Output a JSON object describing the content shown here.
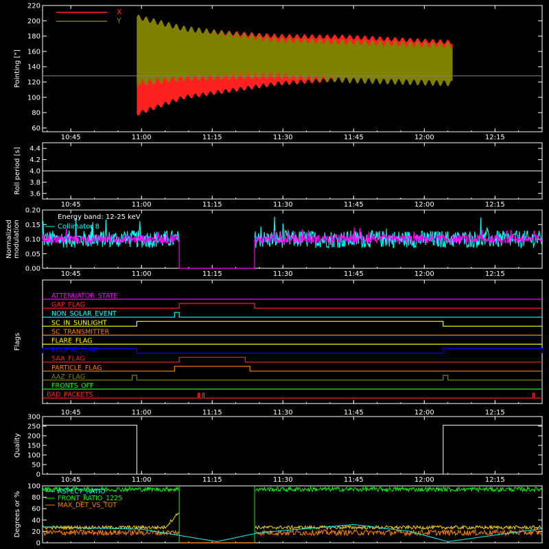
{
  "colors": {
    "background": "#000000",
    "axes": "#ffffff",
    "red": "#ff2020",
    "olive": "#808000",
    "cyan": "#00ffff",
    "magenta": "#ff00ff",
    "orange": "#ff8000",
    "yellow": "#ffff00",
    "blue": "#0000ff",
    "green": "#00ff00",
    "gold": "#ffd700"
  },
  "chart_data": [
    {
      "type": "area",
      "id": "pointing",
      "ylabel": "Pointing [\"]",
      "ylim": [
        55,
        220
      ],
      "yticks": [
        60,
        80,
        100,
        120,
        140,
        160,
        180,
        200,
        220
      ],
      "xticks": [
        "10:45",
        "11:00",
        "11:15",
        "11:30",
        "11:45",
        "12:00",
        "12:15"
      ],
      "legend_position": "top-left",
      "reference_line": 128,
      "series": [
        {
          "name": "X",
          "color": "#ff2020",
          "t_start": "10:59",
          "t_end": "12:06",
          "upper": [
            [
              0,
              205
            ],
            [
              10,
              188
            ],
            [
              30,
              180
            ],
            [
              45,
              179
            ],
            [
              67,
              172
            ]
          ],
          "lower": [
            [
              0,
              78
            ],
            [
              10,
              100
            ],
            [
              30,
              118
            ],
            [
              45,
              124
            ],
            [
              67,
              126
            ]
          ]
        },
        {
          "name": "Y",
          "color": "#808000",
          "t_start": "10:59",
          "t_end": "12:06",
          "upper": [
            [
              0,
              205
            ],
            [
              10,
              190
            ],
            [
              30,
              175
            ],
            [
              45,
              172
            ],
            [
              67,
              168
            ]
          ],
          "lower": [
            [
              0,
              118
            ],
            [
              10,
              125
            ],
            [
              30,
              128
            ],
            [
              45,
              122
            ],
            [
              67,
              118
            ]
          ]
        }
      ]
    },
    {
      "type": "line",
      "id": "roll",
      "ylabel": "Roll period [s]",
      "ylim": [
        3.5,
        4.5
      ],
      "yticks": [
        "3.6",
        "3.8",
        "4.0",
        "4.2",
        "4.4"
      ],
      "xticks": [
        "10:45",
        "11:00",
        "11:15",
        "11:30",
        "11:45",
        "12:00",
        "12:15"
      ],
      "series": [
        {
          "name": "",
          "color": "#ffffff",
          "points": [
            [
              "10:39",
              4.0
            ],
            [
              "12:25",
              4.0
            ]
          ]
        }
      ]
    },
    {
      "type": "line",
      "id": "modulation",
      "ylabel": "Normalized modulation",
      "ylim": [
        0,
        0.2
      ],
      "yticks": [
        "0.00",
        "0.05",
        "0.10",
        "0.15",
        "0.20"
      ],
      "xticks": [
        "10:45",
        "11:00",
        "11:15",
        "11:30",
        "11:45",
        "12:00",
        "12:15"
      ],
      "annotations": [
        "Energy band: 12-25 keV",
        "Collimator 8"
      ],
      "gaps": [
        [
          "11:08",
          "11:24"
        ]
      ],
      "series": [
        {
          "name": "Collimator 8",
          "color": "#00ffff",
          "mean": 0.1,
          "spread": 0.03
        },
        {
          "name": "",
          "color": "#ff00ff",
          "mean": 0.1,
          "spread": 0.015
        }
      ]
    },
    {
      "type": "line",
      "id": "flags",
      "ylabel": "Flags",
      "xticks": [
        "10:45",
        "11:00",
        "11:15",
        "11:30",
        "11:45",
        "12:00",
        "12:15"
      ],
      "series": [
        {
          "name": "ATTENUATOR_STATE",
          "color": "#ff00ff",
          "on": []
        },
        {
          "name": "GAP_FLAG",
          "color": "#ff2020",
          "on": [
            [
              "11:08",
              "11:24"
            ]
          ]
        },
        {
          "name": "NON_SOLAR_EVENT",
          "color": "#00ffff",
          "on": [
            [
              "11:07",
              "11:08"
            ]
          ]
        },
        {
          "name": "SC_IN_SUNLIGHT",
          "color": "#ffff00",
          "on": [
            [
              "10:59",
              "12:04"
            ]
          ]
        },
        {
          "name": "SC_TRANSMITTER",
          "color": "#ff8000",
          "on": []
        },
        {
          "name": "FLARE_FLAG",
          "color": "#ffff00",
          "on": []
        },
        {
          "name": "ECLIPSE_FLAG",
          "color": "#0000ff",
          "on": [
            [
              "10:39",
              "10:59"
            ],
            [
              "12:04",
              "12:25"
            ]
          ]
        },
        {
          "name": "SAA_FLAG",
          "color": "#ff2020",
          "on": [
            [
              "11:08",
              "11:22"
            ]
          ]
        },
        {
          "name": "PARTICLE_FLAG",
          "color": "#ff8000",
          "on": [
            [
              "11:07",
              "11:23"
            ]
          ]
        },
        {
          "name": "AAZ_FLAG",
          "color": "#808000",
          "on": [
            [
              "10:58",
              "10:59"
            ],
            [
              "12:04",
              "12:05"
            ]
          ]
        },
        {
          "name": "FRONTS_OFF",
          "color": "#00ff00",
          "on": []
        },
        {
          "name": "BAD_PACKETS",
          "color": "#ff2020",
          "on": [
            [
              "11:12",
              "11:12"
            ],
            [
              "11:13",
              "11:13"
            ],
            [
              "12:23",
              "12:23"
            ]
          ]
        }
      ]
    },
    {
      "type": "line",
      "id": "quality",
      "ylabel": "Quality",
      "ylim": [
        0,
        300
      ],
      "yticks": [
        "0",
        "50",
        "100",
        "150",
        "200",
        "250",
        "300"
      ],
      "xticks": [
        "10:45",
        "11:00",
        "11:15",
        "11:30",
        "11:45",
        "12:00",
        "12:15"
      ],
      "series": [
        {
          "name": "",
          "color": "#ffffff",
          "points": [
            [
              "10:39",
              255
            ],
            [
              "10:59",
              255
            ],
            [
              "10:59",
              0
            ],
            [
              "12:04",
              0
            ],
            [
              "12:04",
              255
            ],
            [
              "12:25",
              255
            ]
          ]
        }
      ]
    },
    {
      "type": "line",
      "id": "ratios",
      "ylabel": "Degrees or %",
      "ylim": [
        0,
        100
      ],
      "yticks": [
        "0",
        "20",
        "40",
        "60",
        "80",
        "100"
      ],
      "xticks": [],
      "gaps": [
        [
          "11:08",
          "11:24"
        ]
      ],
      "series": [
        {
          "name": "ASPECT_RATIO",
          "color": "#00ffff",
          "points": [
            [
              "10:39",
              28
            ],
            [
              "11:00",
              24
            ],
            [
              "11:16",
              2
            ],
            [
              "11:25",
              18
            ],
            [
              "11:45",
              32
            ],
            [
              "11:57",
              20
            ],
            [
              "12:05",
              2
            ],
            [
              "12:25",
              25
            ]
          ]
        },
        {
          "name": "FRONT_RATIO_1225",
          "color": "#00ff00",
          "mean": 94,
          "spread": 4
        },
        {
          "name": "MAX_DET_VS_TOT",
          "color": "#ff8000",
          "mean": 18,
          "spread": 5
        },
        {
          "name": "",
          "color": "#ffd700",
          "mean": 27,
          "spread": 3
        }
      ]
    }
  ]
}
